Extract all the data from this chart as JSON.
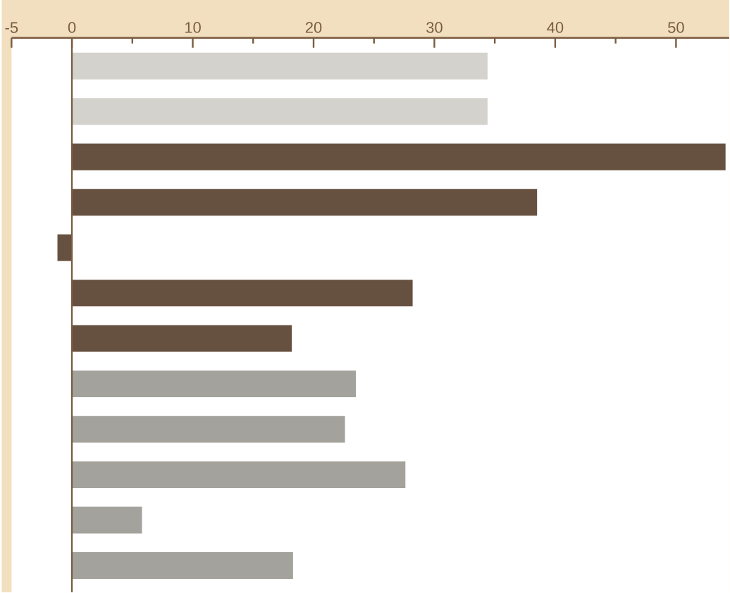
{
  "chart_data": {
    "type": "bar",
    "orientation": "horizontal",
    "categories": [
      null,
      null,
      null,
      null,
      null,
      null,
      null,
      null,
      null,
      null,
      null,
      null
    ],
    "values": [
      34.4,
      34.4,
      54.1,
      38.5,
      -1.2,
      28.2,
      18.2,
      23.5,
      22.6,
      27.6,
      5.8,
      18.3
    ],
    "colors": [
      "#d4d2cd",
      "#d4d2cd",
      "#66503f",
      "#66503f",
      "#66503f",
      "#66503f",
      "#66503f",
      "#a3a29c",
      "#a3a29c",
      "#a3a29c",
      "#a3a29c",
      "#a3a29c"
    ],
    "xlim": [
      -5,
      54.4
    ],
    "xticks": [
      -5,
      0,
      {
        "value": 5,
        "label": null
      },
      10,
      {
        "value": 15,
        "label": null
      },
      20,
      {
        "value": 25,
        "label": null
      },
      30,
      {
        "value": 35,
        "label": null
      },
      40,
      {
        "value": 45,
        "label": null
      },
      50
    ],
    "ref_lines": [
      {
        "axis": "x",
        "value": 0,
        "color": "#7a5c40"
      }
    ],
    "tick_labels": "x"
  }
}
